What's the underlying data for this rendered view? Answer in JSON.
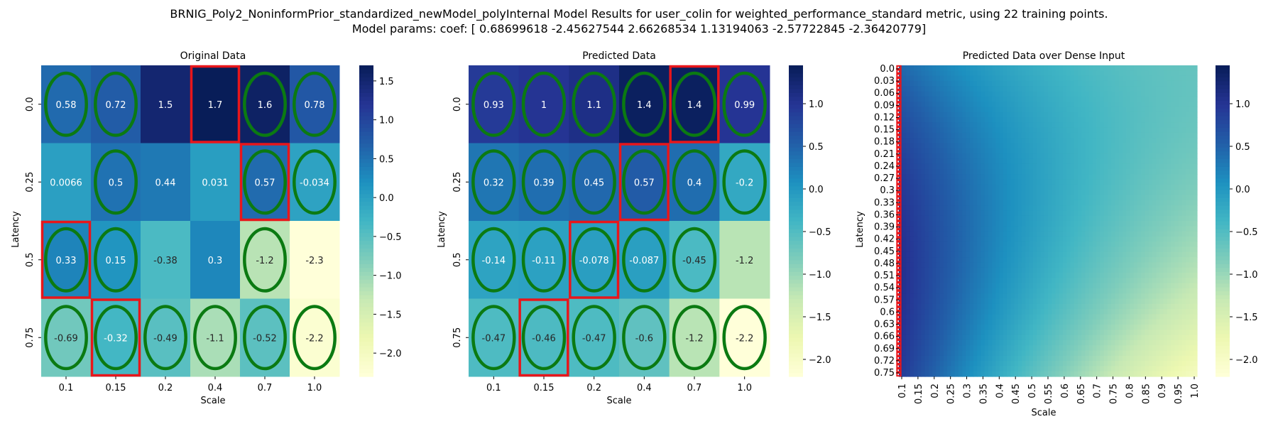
{
  "figure": {
    "title_line1": "BRNIG_Poly2_NoninformPrior_standardized_newModel_polyInternal Model Results for user_colin for weighted_performance_standard metric, using 22 training points.",
    "title_line2": "Model params: coef: [ 0.68699618 -2.45627544  2.66268534  1.13194063 -2.57722845 -2.36420779]"
  },
  "chart_data": [
    {
      "type": "heatmap",
      "title": "Original Data",
      "xlabel": "Scale",
      "ylabel": "Latency",
      "x": [
        "0.1",
        "0.15",
        "0.2",
        "0.4",
        "0.7",
        "1.0"
      ],
      "y": [
        "0.0",
        "0.25",
        "0.5",
        "0.75"
      ],
      "values": [
        [
          0.58,
          0.72,
          1.5,
          1.7,
          1.6,
          0.78
        ],
        [
          0.0066,
          0.5,
          0.44,
          0.031,
          0.57,
          -0.034
        ],
        [
          0.33,
          0.15,
          -0.38,
          0.3,
          -1.2,
          -2.3
        ],
        [
          -0.69,
          -0.32,
          -0.49,
          -1.1,
          -0.52,
          -2.2
        ]
      ],
      "cell_labels": [
        [
          "0.58",
          "0.72",
          "1.5",
          "1.7",
          "1.6",
          "0.78"
        ],
        [
          "0.0066",
          "0.5",
          "0.44",
          "0.031",
          "0.57",
          "-0.034"
        ],
        [
          "0.33",
          "0.15",
          "-0.38",
          "0.3",
          "-1.2",
          "-2.3"
        ],
        [
          "-0.69",
          "-0.32",
          "-0.49",
          "-1.1",
          "-0.52",
          "-2.2"
        ]
      ],
      "vmin": -2.3,
      "vmax": 1.7,
      "colorbar_ticks": [
        -2.0,
        -1.5,
        -1.0,
        -0.5,
        0.0,
        0.5,
        1.0,
        1.5
      ],
      "colorbar_labels": [
        "−2.0",
        "−1.5",
        "−1.0",
        "−0.5",
        "0.0",
        "0.5",
        "1.0",
        "1.5"
      ],
      "highlight_max": [
        [
          0,
          3
        ],
        [
          1,
          4
        ],
        [
          2,
          0
        ],
        [
          3,
          1
        ]
      ],
      "green_ellipses": [
        [
          0,
          0
        ],
        [
          0,
          1
        ],
        [
          0,
          4
        ],
        [
          0,
          5
        ],
        [
          1,
          1
        ],
        [
          1,
          4
        ],
        [
          1,
          5
        ],
        [
          2,
          0
        ],
        [
          2,
          1
        ],
        [
          2,
          4
        ],
        [
          3,
          0
        ],
        [
          3,
          1
        ],
        [
          3,
          2
        ],
        [
          3,
          3
        ],
        [
          3,
          4
        ],
        [
          3,
          5
        ]
      ]
    },
    {
      "type": "heatmap",
      "title": "Predicted Data",
      "xlabel": "Scale",
      "ylabel": "Latency",
      "x": [
        "0.1",
        "0.15",
        "0.2",
        "0.4",
        "0.7",
        "1.0"
      ],
      "y": [
        "0.0",
        "0.25",
        "0.5",
        "0.75"
      ],
      "values": [
        [
          0.93,
          1.0,
          1.1,
          1.4,
          1.4,
          0.99
        ],
        [
          0.32,
          0.39,
          0.45,
          0.57,
          0.4,
          -0.2
        ],
        [
          -0.14,
          -0.11,
          -0.078,
          -0.087,
          -0.45,
          -1.2
        ],
        [
          -0.47,
          -0.46,
          -0.47,
          -0.6,
          -1.2,
          -2.2
        ]
      ],
      "cell_labels": [
        [
          "0.93",
          "1",
          "1.1",
          "1.4",
          "1.4",
          "0.99"
        ],
        [
          "0.32",
          "0.39",
          "0.45",
          "0.57",
          "0.4",
          "-0.2"
        ],
        [
          "-0.14",
          "-0.11",
          "-0.078",
          "-0.087",
          "-0.45",
          "-1.2"
        ],
        [
          "-0.47",
          "-0.46",
          "-0.47",
          "-0.6",
          "-1.2",
          "-2.2"
        ]
      ],
      "vmin": -2.2,
      "vmax": 1.45,
      "colorbar_ticks": [
        -2.0,
        -1.5,
        -1.0,
        -0.5,
        0.0,
        0.5,
        1.0
      ],
      "colorbar_labels": [
        "−2.0",
        "−1.5",
        "−1.0",
        "−0.5",
        "0.0",
        "0.5",
        "1.0"
      ],
      "highlight_max": [
        [
          0,
          4
        ],
        [
          1,
          3
        ],
        [
          2,
          2
        ],
        [
          3,
          1
        ]
      ],
      "green_ellipses": [
        [
          0,
          0
        ],
        [
          0,
          1
        ],
        [
          0,
          2
        ],
        [
          0,
          3
        ],
        [
          0,
          4
        ],
        [
          0,
          5
        ],
        [
          1,
          0
        ],
        [
          1,
          1
        ],
        [
          1,
          2
        ],
        [
          1,
          3
        ],
        [
          1,
          4
        ],
        [
          1,
          5
        ],
        [
          2,
          0
        ],
        [
          2,
          1
        ],
        [
          2,
          2
        ],
        [
          2,
          3
        ],
        [
          2,
          4
        ],
        [
          3,
          0
        ],
        [
          3,
          1
        ],
        [
          3,
          2
        ],
        [
          3,
          3
        ],
        [
          3,
          4
        ],
        [
          3,
          5
        ]
      ]
    },
    {
      "type": "heatmap",
      "title": "Predicted Data over Dense Input",
      "xlabel": "Scale",
      "ylabel": "Latency",
      "x": [
        "0.1",
        "0.15",
        "0.2",
        "0.25",
        "0.3",
        "0.35",
        "0.4",
        "0.45",
        "0.5",
        "0.55",
        "0.6",
        "0.65",
        "0.7",
        "0.75",
        "0.8",
        "0.85",
        "0.9",
        "0.95",
        "1.0"
      ],
      "y": [
        "0.0",
        "0.03",
        "0.06",
        "0.09",
        "0.12",
        "0.15",
        "0.18",
        "0.21",
        "0.24",
        "0.27",
        "0.3",
        "0.33",
        "0.36",
        "0.39",
        "0.42",
        "0.45",
        "0.48",
        "0.51",
        "0.54",
        "0.57",
        "0.6",
        "0.63",
        "0.66",
        "0.69",
        "0.72",
        "0.75"
      ],
      "x_range": [
        0.1,
        1.0
      ],
      "y_range": [
        0.0,
        0.75
      ],
      "vmin": -2.2,
      "vmax": 1.45,
      "colorbar_ticks": [
        -2.0,
        -1.5,
        -1.0,
        -0.5,
        0.0,
        0.5,
        1.0
      ],
      "colorbar_labels": [
        "−2.0",
        "−1.5",
        "−1.0",
        "−0.5",
        "0.0",
        "0.5",
        "1.0"
      ],
      "model_coef": [
        0.68699618,
        -2.45627544,
        2.66268534,
        1.13194063,
        -2.57722845,
        -2.36420779
      ],
      "highlight_max_path": "column of maximum value per latency row"
    }
  ],
  "colors": {
    "highlight": "#e8161b",
    "ellipse": "#0b7a12",
    "colormap": [
      "#ffffd9",
      "#edf8b1",
      "#c7e9b4",
      "#7fcdbb",
      "#41b6c4",
      "#1d91c0",
      "#225ea8",
      "#253494",
      "#081d58"
    ]
  }
}
